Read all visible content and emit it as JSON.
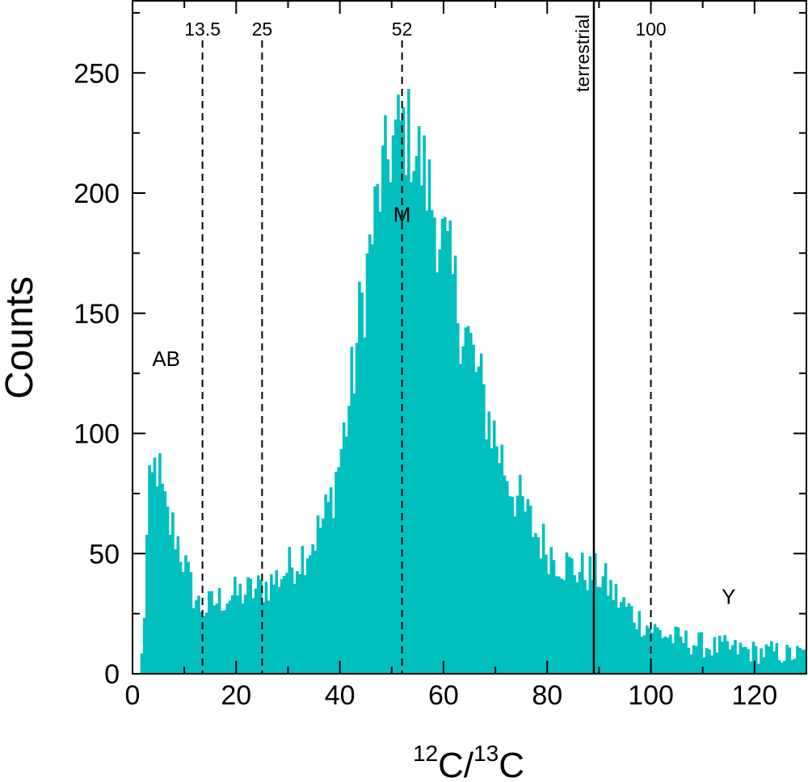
{
  "chart_data": {
    "type": "bar",
    "title": "",
    "xlabel": {
      "base1": "C/",
      "sup1": "12",
      "sup2": "13",
      "base2": "C"
    },
    "ylabel": "Counts",
    "xlim": [
      0,
      130
    ],
    "ylim": [
      0,
      280
    ],
    "bar_color": "#00bfbf",
    "bin_width": 0.5,
    "x_ticks": [
      0,
      20,
      40,
      60,
      80,
      100,
      120
    ],
    "y_ticks": [
      0,
      50,
      100,
      150,
      200,
      250
    ],
    "x_tick_labels": [
      "0",
      "20",
      "40",
      "60",
      "80",
      "100",
      "120"
    ],
    "y_tick_labels": [
      "0",
      "50",
      "100",
      "150",
      "200",
      "250"
    ],
    "histogram_profile": [
      [
        1,
        0
      ],
      [
        1.5,
        2
      ],
      [
        2,
        12
      ],
      [
        2.5,
        40
      ],
      [
        3,
        70
      ],
      [
        3.5,
        78
      ],
      [
        4,
        80
      ],
      [
        4.5,
        90
      ],
      [
        5,
        85
      ],
      [
        6,
        70
      ],
      [
        7,
        62
      ],
      [
        8,
        60
      ],
      [
        9,
        54
      ],
      [
        10,
        46
      ],
      [
        11,
        38
      ],
      [
        12,
        32
      ],
      [
        13,
        28
      ],
      [
        14,
        27
      ],
      [
        16,
        30
      ],
      [
        18,
        32
      ],
      [
        20,
        33
      ],
      [
        22,
        34
      ],
      [
        24,
        35
      ],
      [
        26,
        37
      ],
      [
        28,
        40
      ],
      [
        30,
        44
      ],
      [
        32,
        48
      ],
      [
        34,
        53
      ],
      [
        36,
        60
      ],
      [
        38,
        70
      ],
      [
        40,
        90
      ],
      [
        42,
        115
      ],
      [
        44,
        150
      ],
      [
        46,
        180
      ],
      [
        48,
        205
      ],
      [
        50,
        220
      ],
      [
        52,
        228
      ],
      [
        54,
        222
      ],
      [
        56,
        210
      ],
      [
        58,
        195
      ],
      [
        60,
        178
      ],
      [
        62,
        160
      ],
      [
        64,
        145
      ],
      [
        66,
        128
      ],
      [
        68,
        112
      ],
      [
        70,
        98
      ],
      [
        72,
        85
      ],
      [
        74,
        74
      ],
      [
        76,
        66
      ],
      [
        78,
        58
      ],
      [
        80,
        52
      ],
      [
        82,
        48
      ],
      [
        84,
        45
      ],
      [
        86,
        43
      ],
      [
        88,
        42
      ],
      [
        90,
        41
      ],
      [
        92,
        36
      ],
      [
        94,
        30
      ],
      [
        96,
        26
      ],
      [
        98,
        22
      ],
      [
        100,
        19
      ],
      [
        102,
        17
      ],
      [
        104,
        15
      ],
      [
        106,
        14
      ],
      [
        108,
        13
      ],
      [
        110,
        12
      ],
      [
        112,
        11
      ],
      [
        114,
        11
      ],
      [
        116,
        10
      ],
      [
        118,
        10
      ],
      [
        120,
        9
      ],
      [
        122,
        9
      ],
      [
        124,
        9
      ],
      [
        126,
        8
      ],
      [
        128,
        8
      ],
      [
        130,
        8
      ]
    ],
    "reference_lines": [
      {
        "x": 13.5,
        "label": "13.5",
        "style": "dashed"
      },
      {
        "x": 25,
        "label": "25",
        "style": "dashed"
      },
      {
        "x": 52,
        "label": "52",
        "style": "dashed"
      },
      {
        "x": 89,
        "label": "terrestrial",
        "style": "solid",
        "orientation": "vertical"
      },
      {
        "x": 100,
        "label": "100",
        "style": "dashed"
      }
    ],
    "annotations": [
      {
        "text": "AB",
        "x": 6.5,
        "y": 128
      },
      {
        "text": "M",
        "x": 52,
        "y": 188
      },
      {
        "text": "Y",
        "x": 115,
        "y": 29
      }
    ]
  }
}
